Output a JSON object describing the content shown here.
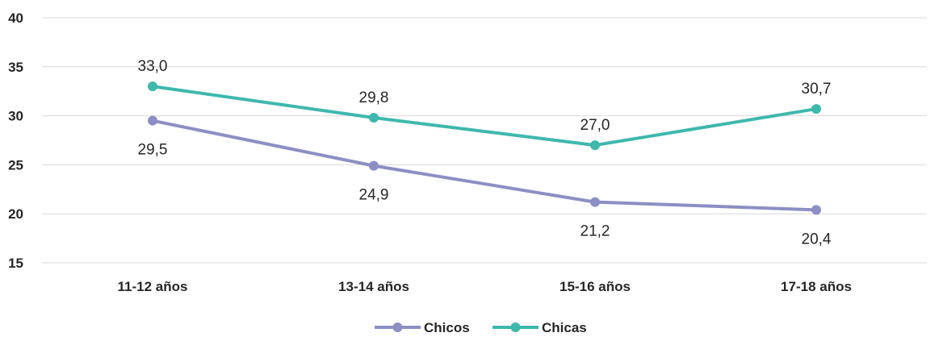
{
  "chart_data": {
    "type": "line",
    "title": "",
    "xlabel": "",
    "ylabel": "",
    "categories": [
      "11-12 años",
      "13-14 años",
      "15-16 años",
      "17-18 años"
    ],
    "ylim": [
      15,
      40
    ],
    "yticks": [
      15,
      20,
      25,
      30,
      35,
      40
    ],
    "ytick_labels": [
      "15",
      "20",
      "25",
      "30",
      "35",
      "40"
    ],
    "grid": true,
    "legend_position": "bottom-center",
    "series": [
      {
        "name": "Chicos",
        "color": "#8c8fc4",
        "values": [
          29.5,
          24.9,
          21.2,
          20.4
        ],
        "labels": [
          "29,5",
          "24,9",
          "21,2",
          "20,4"
        ],
        "label_position": "below"
      },
      {
        "name": "Chicas",
        "color": "#3fb8ac",
        "values": [
          33.0,
          29.8,
          27.0,
          30.7
        ],
        "labels": [
          "33,0",
          "29,8",
          "27,0",
          "30,7"
        ],
        "label_position": "above"
      }
    ]
  }
}
